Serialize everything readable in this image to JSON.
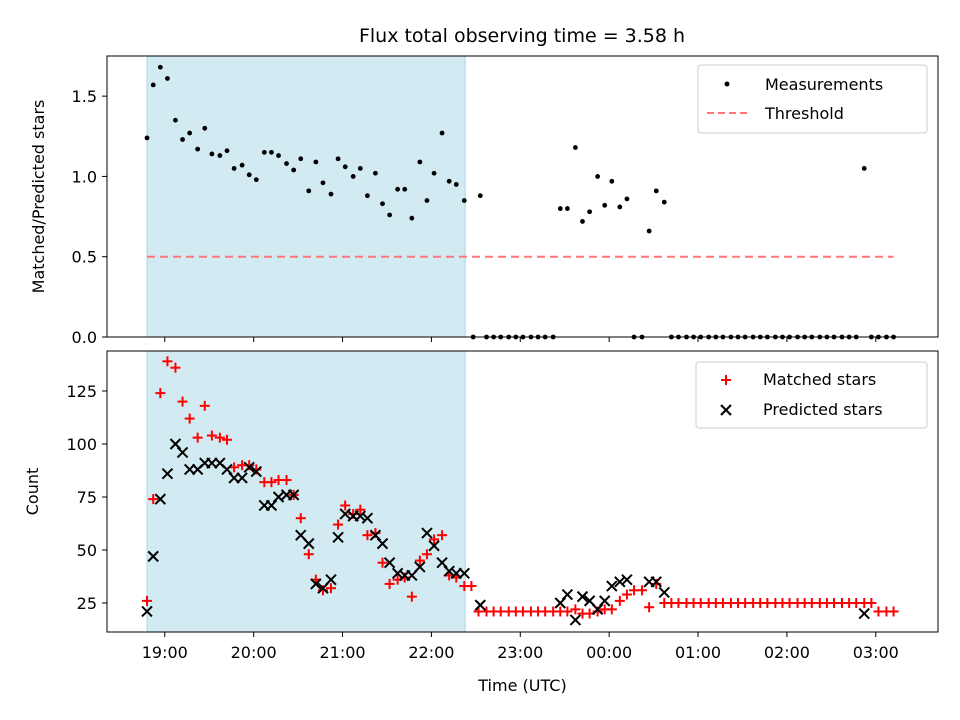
{
  "chart_data": {
    "type": "scatter",
    "title": "Flux total observing time = 3.58 h",
    "xlabel": "Time (UTC)",
    "x_ticks": [
      "19:00",
      "20:00",
      "21:00",
      "22:00",
      "23:00",
      "00:00",
      "01:00",
      "02:00",
      "03:00"
    ],
    "x_range_hours": [
      18.35,
      27.7
    ],
    "shaded_interval_hours": [
      18.8,
      22.38
    ],
    "colors": {
      "shade": "#add8e6",
      "matched": "#ff0000",
      "predicted": "#000000",
      "threshold": "#ff7777",
      "measurements": "#000000"
    },
    "panels": [
      {
        "ylabel": "Matched/Predicted stars",
        "ylim": [
          0,
          1.75
        ],
        "y_ticks": [
          "0.0",
          "0.5",
          "1.0",
          "1.5"
        ],
        "legend": {
          "position": "top-right"
        },
        "series": [
          {
            "name": "Measurements",
            "marker": "dot",
            "x": [
              18.8,
              18.87,
              18.95,
              19.03,
              19.12,
              19.2,
              19.28,
              19.37,
              19.45,
              19.53,
              19.62,
              19.7,
              19.78,
              19.87,
              19.95,
              20.03,
              20.12,
              20.2,
              20.28,
              20.37,
              20.45,
              20.53,
              20.62,
              20.7,
              20.78,
              20.87,
              20.95,
              21.03,
              21.12,
              21.2,
              21.28,
              21.37,
              21.45,
              21.53,
              21.62,
              21.7,
              21.78,
              21.87,
              21.95,
              22.03,
              22.12,
              22.2,
              22.28,
              22.37,
              22.55,
              22.47,
              22.62,
              22.7,
              22.78,
              22.87,
              22.95,
              23.03,
              23.12,
              23.2,
              23.28,
              23.37,
              23.45,
              23.53,
              23.62,
              23.7,
              23.78,
              23.87,
              23.95,
              24.03,
              24.12,
              24.2,
              24.28,
              24.37,
              24.45,
              24.53,
              24.62,
              24.7,
              24.78,
              24.87,
              24.95,
              25.03,
              25.12,
              25.2,
              25.28,
              25.37,
              25.45,
              25.53,
              25.62,
              25.7,
              25.78,
              25.87,
              25.95,
              26.03,
              26.12,
              26.2,
              26.28,
              26.37,
              26.45,
              26.53,
              26.62,
              26.7,
              26.78,
              26.87,
              26.95,
              27.03,
              27.12,
              27.2
            ],
            "y": [
              1.24,
              1.57,
              1.68,
              1.61,
              1.35,
              1.23,
              1.27,
              1.17,
              1.3,
              1.14,
              1.13,
              1.16,
              1.05,
              1.07,
              1.01,
              0.98,
              1.15,
              1.15,
              1.13,
              1.08,
              1.04,
              1.11,
              0.91,
              1.09,
              0.96,
              0.89,
              1.11,
              1.06,
              1.0,
              1.05,
              0.88,
              1.02,
              0.83,
              0.76,
              0.92,
              0.92,
              0.74,
              1.09,
              0.85,
              1.02,
              1.27,
              0.97,
              0.95,
              0.85,
              0.88,
              0.0,
              0.0,
              0.0,
              0.0,
              0.0,
              0.0,
              0.0,
              0.0,
              0.0,
              0.0,
              0.0,
              0.8,
              0.8,
              1.18,
              0.72,
              0.78,
              1.0,
              0.82,
              0.97,
              0.81,
              0.86,
              0.0,
              0.0,
              0.66,
              0.91,
              0.84,
              0.0,
              0.0,
              0.0,
              0.0,
              0.0,
              0.0,
              0.0,
              0.0,
              0.0,
              0.0,
              0.0,
              0.0,
              0.0,
              0.0,
              0.0,
              0.0,
              0.0,
              0.0,
              0.0,
              0.0,
              0.0,
              0.0,
              0.0,
              0.0,
              0.0,
              0.0,
              1.05,
              0.0,
              0.0,
              0.0,
              0.0
            ]
          },
          {
            "name": "Threshold",
            "style": "dashed",
            "x": [
              18.8,
              27.2
            ],
            "y": [
              0.5,
              0.5
            ]
          }
        ]
      },
      {
        "ylabel": "Count",
        "ylim": [
          10,
          145
        ],
        "y_ticks": [
          "25",
          "50",
          "75",
          "100",
          "125"
        ],
        "legend": {
          "position": "top-right"
        },
        "series": [
          {
            "name": "Matched stars",
            "marker": "plus",
            "x": [
              18.8,
              18.87,
              18.95,
              19.03,
              19.12,
              19.2,
              19.28,
              19.37,
              19.45,
              19.53,
              19.62,
              19.7,
              19.78,
              19.87,
              19.95,
              20.03,
              20.12,
              20.2,
              20.28,
              20.37,
              20.45,
              20.53,
              20.62,
              20.7,
              20.78,
              20.87,
              20.95,
              21.03,
              21.12,
              21.2,
              21.28,
              21.37,
              21.45,
              21.53,
              21.62,
              21.7,
              21.78,
              21.87,
              21.95,
              22.03,
              22.12,
              22.2,
              22.28,
              22.37,
              22.45,
              22.53,
              22.62,
              22.7,
              22.78,
              22.87,
              22.95,
              23.03,
              23.12,
              23.2,
              23.28,
              23.37,
              23.45,
              23.53,
              23.62,
              23.7,
              23.78,
              23.87,
              23.95,
              24.03,
              24.12,
              24.2,
              24.28,
              24.37,
              24.45,
              24.53,
              24.62,
              24.7,
              24.78,
              24.87,
              24.95,
              25.03,
              25.12,
              25.2,
              25.28,
              25.37,
              25.45,
              25.53,
              25.62,
              25.7,
              25.78,
              25.87,
              25.95,
              26.03,
              26.12,
              26.2,
              26.28,
              26.37,
              26.45,
              26.53,
              26.62,
              26.7,
              26.78,
              26.87,
              26.95,
              27.03,
              27.12,
              27.2
            ],
            "y": [
              26,
              74,
              124,
              139,
              136,
              120,
              112,
              103,
              118,
              104,
              103,
              102,
              89,
              90,
              90,
              88,
              82,
              82,
              83,
              83,
              76,
              65,
              48,
              36,
              31,
              32,
              62,
              71,
              67,
              69,
              57,
              58,
              44,
              34,
              36,
              37,
              28,
              45,
              48,
              55,
              57,
              38,
              37,
              33,
              33,
              21,
              21,
              21,
              21,
              21,
              21,
              21,
              21,
              21,
              21,
              21,
              21,
              21,
              22,
              20,
              20,
              21,
              22,
              22,
              26,
              29,
              31,
              31,
              23,
              34,
              25,
              25,
              25,
              25,
              25,
              25,
              25,
              25,
              25,
              25,
              25,
              25,
              25,
              25,
              25,
              25,
              25,
              25,
              25,
              25,
              25,
              25,
              25,
              25,
              25,
              25,
              25,
              25,
              25,
              21,
              21,
              21
            ]
          },
          {
            "name": "Predicted stars",
            "marker": "x",
            "x": [
              18.8,
              18.87,
              18.95,
              19.03,
              19.12,
              19.2,
              19.28,
              19.37,
              19.45,
              19.53,
              19.62,
              19.7,
              19.78,
              19.87,
              19.95,
              20.03,
              20.12,
              20.2,
              20.28,
              20.37,
              20.45,
              20.53,
              20.62,
              20.7,
              20.78,
              20.87,
              20.95,
              21.03,
              21.12,
              21.2,
              21.28,
              21.37,
              21.45,
              21.53,
              21.62,
              21.7,
              21.78,
              21.87,
              21.95,
              22.03,
              22.12,
              22.2,
              22.28,
              22.37,
              22.55,
              23.45,
              23.53,
              23.62,
              23.7,
              23.78,
              23.87,
              23.95,
              24.03,
              24.12,
              24.2,
              24.45,
              24.53,
              24.62,
              26.87
            ],
            "y": [
              21,
              47,
              74,
              86,
              100,
              96,
              88,
              88,
              91,
              91,
              91,
              88,
              84,
              84,
              89,
              87,
              71,
              71,
              75,
              76,
              76,
              57,
              53,
              34,
              32,
              36,
              56,
              67,
              66,
              66,
              65,
              57,
              53,
              44,
              39,
              38,
              38,
              42,
              58,
              52,
              44,
              40,
              39,
              39,
              24,
              25,
              29,
              17,
              28,
              26,
              22,
              26,
              33,
              35,
              36,
              35,
              35,
              30,
              20
            ]
          }
        ]
      }
    ]
  }
}
